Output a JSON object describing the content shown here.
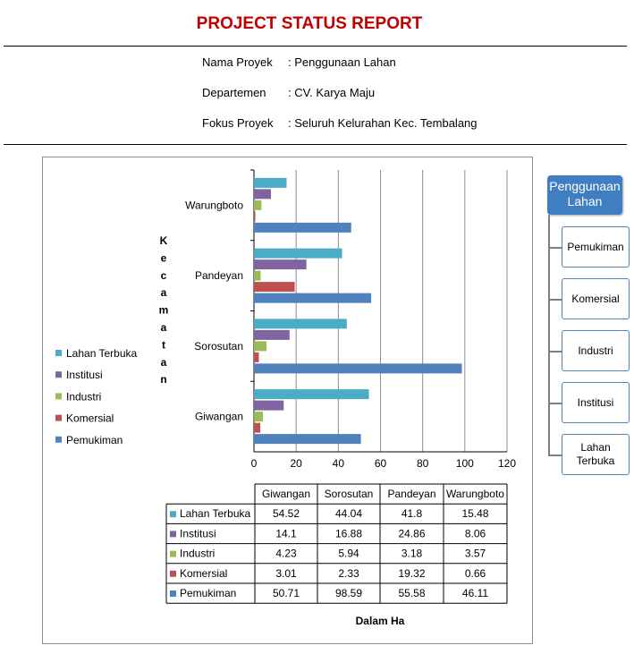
{
  "report": {
    "title": "PROJECT STATUS REPORT",
    "fields": [
      {
        "label": "Nama Proyek",
        "value": ": Penggunaan Lahan"
      },
      {
        "label": "Departemen",
        "value": ": CV. Karya Maju"
      },
      {
        "label": "Fokus Proyek",
        "value": ": Seluruh Kelurahan Kec. Tembalang"
      }
    ]
  },
  "sidebar": {
    "header": "Penggunaan Lahan",
    "items": [
      "Pemukiman",
      "Komersial",
      "Industri",
      "Institusi",
      "Lahan Terbuka"
    ],
    "header_color": "#3f7fc1",
    "border_color": "#4f81bd"
  },
  "chart_data": {
    "type": "bar",
    "orientation": "horizontal",
    "categories": [
      "Giwangan",
      "Sorosutan",
      "Pandeyan",
      "Warungboto"
    ],
    "series": [
      {
        "name": "Lahan Terbuka",
        "color": "#4bacc6",
        "values": [
          54.52,
          44.04,
          41.8,
          15.48
        ]
      },
      {
        "name": "Institusi",
        "color": "#8064a2",
        "values": [
          14.1,
          16.88,
          24.86,
          8.06
        ]
      },
      {
        "name": "Industri",
        "color": "#9bbb59",
        "values": [
          4.23,
          5.94,
          3.18,
          3.57
        ]
      },
      {
        "name": "Komersial",
        "color": "#c0504d",
        "values": [
          3.01,
          2.33,
          19.32,
          0.66
        ]
      },
      {
        "name": "Pemukiman",
        "color": "#4f81bd",
        "values": [
          50.71,
          98.59,
          55.58,
          46.11
        ]
      }
    ],
    "xlim": [
      0,
      120
    ],
    "xticks": [
      0,
      20,
      40,
      60,
      80,
      100,
      120
    ],
    "ylabel": "Kecamatan",
    "xlabel": "Dalam Ha",
    "legend": "left",
    "grid": true,
    "data_table": true
  }
}
